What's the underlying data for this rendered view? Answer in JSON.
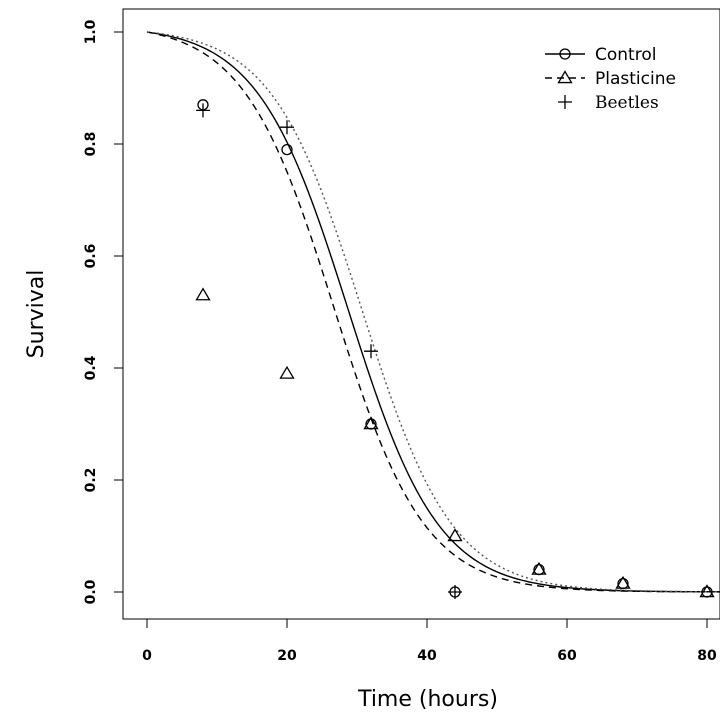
{
  "chart_data": {
    "type": "scatter",
    "xlabel": "Time (hours)",
    "ylabel": "Survival",
    "xlim": [
      -2,
      82
    ],
    "ylim": [
      -0.04,
      1.04
    ],
    "x_ticks": [
      0,
      20,
      40,
      60,
      80
    ],
    "y_ticks": [
      0.0,
      0.2,
      0.4,
      0.6,
      0.8,
      1.0
    ],
    "x_tick_labels": [
      "0",
      "20",
      "40",
      "60",
      "80"
    ],
    "y_tick_labels": [
      "0.0",
      "0.2",
      "0.4",
      "0.6",
      "0.8",
      "1.0"
    ],
    "grid": false,
    "legend_placement": "top-right",
    "series": [
      {
        "name": "Control",
        "marker": "circle",
        "line_style": "solid",
        "points": [
          [
            8,
            0.87
          ],
          [
            20,
            0.79
          ],
          [
            32,
            0.3
          ],
          [
            44,
            0.0
          ],
          [
            56,
            0.04
          ],
          [
            68,
            0.015
          ],
          [
            80,
            0.0
          ]
        ],
        "curve_fit": {
          "x0": 28.7,
          "k": 0.155
        }
      },
      {
        "name": "Plasticine",
        "marker": "triangle",
        "line_style": "dashed",
        "points": [
          [
            8,
            0.53
          ],
          [
            20,
            0.39
          ],
          [
            32,
            0.3
          ],
          [
            44,
            0.1
          ],
          [
            56,
            0.04
          ],
          [
            68,
            0.015
          ],
          [
            80,
            0.0
          ]
        ],
        "curve_fit": {
          "x0": 26.7,
          "k": 0.155
        }
      },
      {
        "name": "Beetles",
        "marker": "plus",
        "line_style": "dotted",
        "points": [
          [
            8,
            0.86
          ],
          [
            20,
            0.83
          ],
          [
            32,
            0.43
          ],
          [
            44,
            0.0
          ]
        ],
        "curve_fit": {
          "x0": 30.7,
          "k": 0.155
        }
      }
    ]
  }
}
